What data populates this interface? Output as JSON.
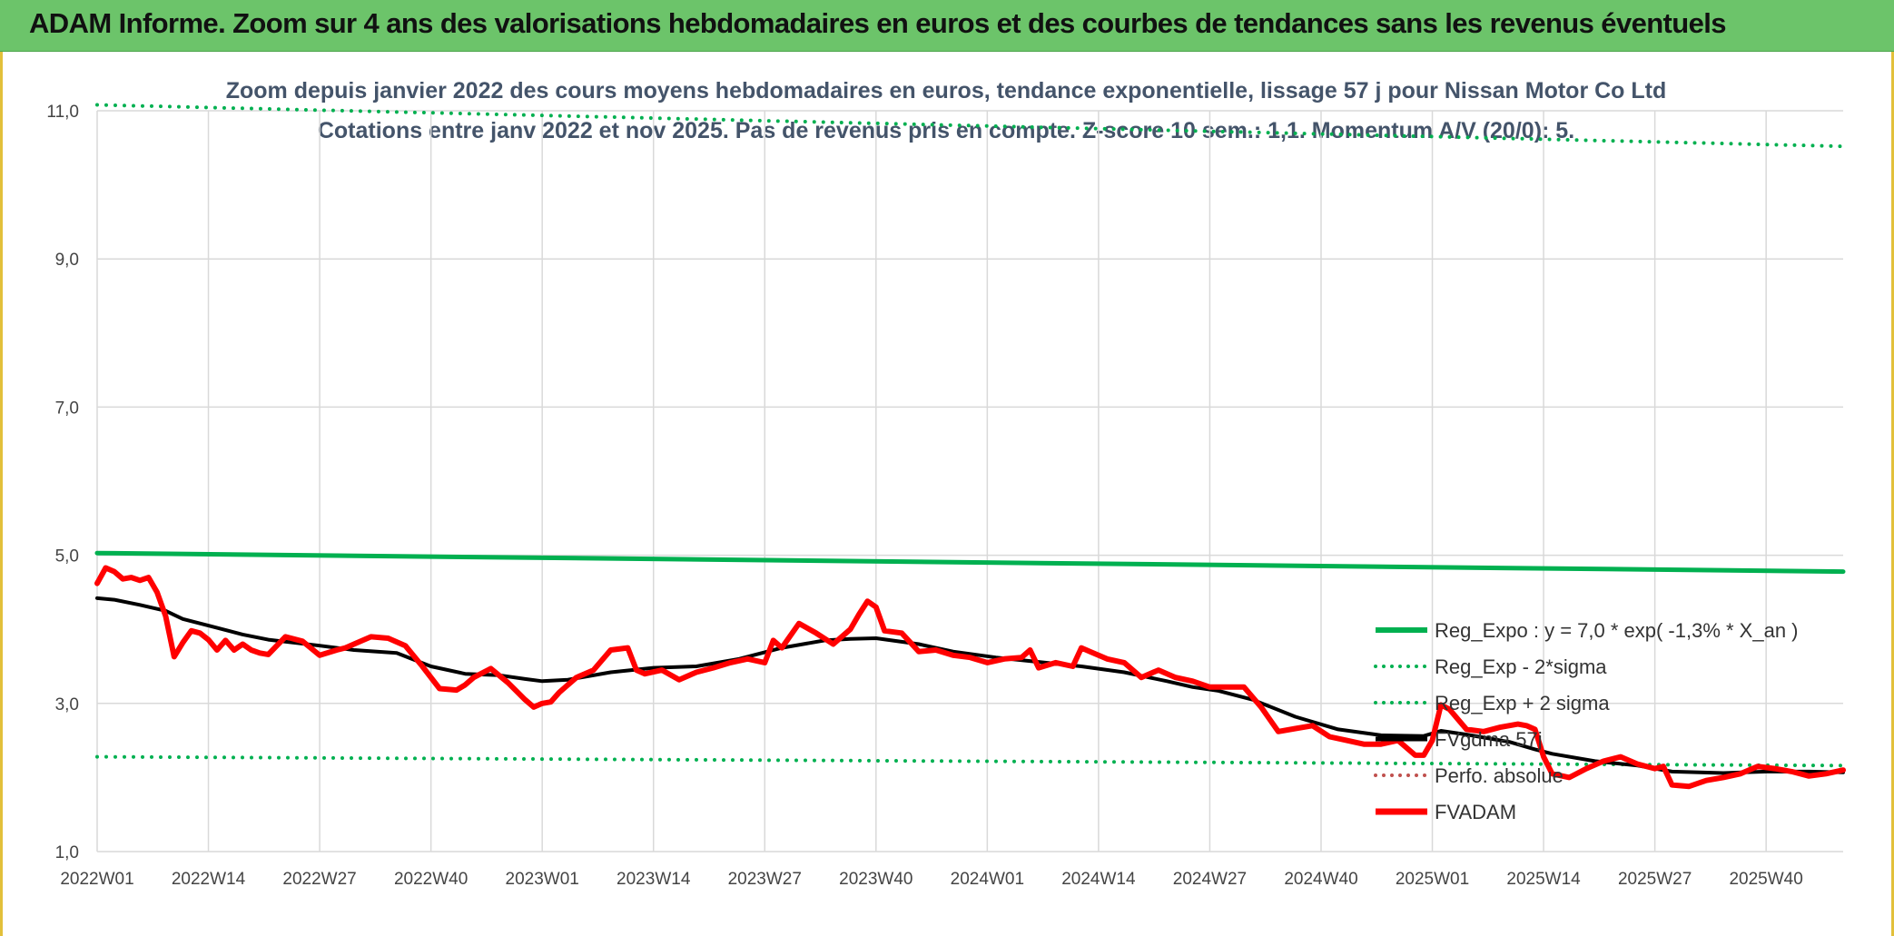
{
  "banner": {
    "title": "ADAM Informe. Zoom sur 4 ans des valorisations hebdomadaires en euros et des courbes de tendances sans les revenus éventuels"
  },
  "chart_data": {
    "type": "line",
    "title": "Zoom depuis janvier 2022 des cours moyens hebdomadaires en euros, tendance exponentielle, lissage 57 j pour Nissan Motor Co Ltd",
    "subtitle": "Cotations entre janv 2022 et nov 2025. Pas de revenus pris en compte. Z-score 10 sem.: 1,1. Momentum A/V (20/0): 5.",
    "xlabel": "",
    "ylabel": "",
    "ylim": [
      1.0,
      11.0
    ],
    "y_ticks": [
      1.0,
      3.0,
      5.0,
      7.0,
      9.0,
      11.0
    ],
    "y_tick_labels": [
      "1,0",
      "3,0",
      "5,0",
      "7,0",
      "9,0",
      "11,0"
    ],
    "x_tick_labels": [
      "2022W01",
      "2022W14",
      "2022W27",
      "2022W40",
      "2023W01",
      "2023W14",
      "2023W27",
      "2023W40",
      "2024W01",
      "2024W14",
      "2024W27",
      "2024W40",
      "2025W01",
      "2025W14",
      "2025W27",
      "2025W40"
    ],
    "x_tick_index": [
      0,
      13,
      26,
      39,
      52,
      65,
      78,
      91,
      104,
      117,
      130,
      143,
      156,
      169,
      182,
      195
    ],
    "weeks_count": 204,
    "grid": true,
    "legend_position": "right",
    "series": [
      {
        "name": "Reg_Expo : y = 7,0 * exp( -1,3% *  X_an )",
        "color": "#00b050",
        "style": "solid",
        "width": 5,
        "x": [
          0,
          204
        ],
        "values": [
          5.03,
          4.78
        ]
      },
      {
        "name": "Reg_Exp - 2*sigma",
        "color": "#00b050",
        "style": "dotted",
        "width": 4,
        "x": [
          0,
          204
        ],
        "values": [
          2.28,
          2.16
        ]
      },
      {
        "name": "Reg_Exp + 2 sigma",
        "color": "#00b050",
        "style": "dotted",
        "width": 4,
        "x": [
          0,
          204
        ],
        "values": [
          11.08,
          10.52
        ]
      },
      {
        "name": "FVgdma 57j",
        "color": "#000000",
        "style": "solid",
        "width": 4,
        "x": [
          0,
          2,
          5,
          8,
          10,
          13,
          17,
          20,
          26,
          30,
          35,
          39,
          43,
          47,
          50,
          52,
          55,
          60,
          65,
          70,
          75,
          80,
          85,
          88,
          91,
          96,
          100,
          105,
          110,
          115,
          120,
          125,
          128,
          131,
          135,
          140,
          145,
          150,
          155,
          157,
          160,
          165,
          168,
          170,
          175,
          180,
          184,
          190,
          195,
          200,
          204
        ],
        "values": [
          4.42,
          4.4,
          4.33,
          4.25,
          4.14,
          4.05,
          3.93,
          3.86,
          3.78,
          3.72,
          3.68,
          3.5,
          3.4,
          3.38,
          3.33,
          3.3,
          3.32,
          3.42,
          3.48,
          3.5,
          3.6,
          3.75,
          3.85,
          3.87,
          3.88,
          3.8,
          3.7,
          3.62,
          3.56,
          3.5,
          3.42,
          3.3,
          3.22,
          3.17,
          3.05,
          2.82,
          2.65,
          2.57,
          2.56,
          2.63,
          2.58,
          2.48,
          2.38,
          2.32,
          2.22,
          2.16,
          2.08,
          2.06,
          2.08,
          2.08,
          2.07
        ]
      },
      {
        "name": "Perfo. absolue",
        "color": "#c0504d",
        "style": "dotted",
        "width": 3,
        "x": [],
        "values": []
      },
      {
        "name": "FVADAM",
        "color": "#ff0000",
        "style": "solid",
        "width": 6,
        "x": [
          0,
          1,
          2,
          3,
          4,
          5,
          6,
          7,
          8,
          9,
          10,
          11,
          12,
          13,
          14,
          15,
          16,
          17,
          18,
          19,
          20,
          22,
          24,
          26,
          28,
          29,
          30,
          32,
          34,
          36,
          38,
          40,
          42,
          43,
          44,
          46,
          48,
          50,
          51,
          52,
          53,
          54,
          56,
          58,
          60,
          62,
          63,
          64,
          66,
          68,
          70,
          72,
          74,
          76,
          78,
          79,
          80,
          82,
          84,
          86,
          88,
          89,
          90,
          91,
          92,
          94,
          96,
          98,
          100,
          102,
          104,
          106,
          108,
          109,
          110,
          112,
          114,
          115,
          116,
          118,
          120,
          122,
          124,
          126,
          128,
          130,
          132,
          134,
          136,
          138,
          140,
          142,
          144,
          146,
          148,
          150,
          152,
          154,
          155,
          156,
          157,
          158,
          160,
          162,
          164,
          166,
          167,
          168,
          169,
          170,
          172,
          174,
          176,
          178,
          180,
          182,
          183,
          184,
          186,
          188,
          190,
          192,
          194,
          196,
          198,
          200,
          202,
          204
        ],
        "values": [
          4.62,
          4.83,
          4.78,
          4.68,
          4.7,
          4.66,
          4.7,
          4.5,
          4.18,
          3.63,
          3.82,
          3.98,
          3.95,
          3.86,
          3.72,
          3.85,
          3.72,
          3.8,
          3.72,
          3.68,
          3.66,
          3.9,
          3.84,
          3.65,
          3.72,
          3.75,
          3.8,
          3.9,
          3.88,
          3.78,
          3.5,
          3.2,
          3.18,
          3.25,
          3.35,
          3.47,
          3.28,
          3.05,
          2.95,
          3.0,
          3.02,
          3.15,
          3.35,
          3.45,
          3.72,
          3.75,
          3.45,
          3.4,
          3.45,
          3.32,
          3.42,
          3.48,
          3.55,
          3.6,
          3.55,
          3.85,
          3.75,
          4.08,
          3.95,
          3.8,
          4.0,
          4.2,
          4.38,
          4.3,
          3.98,
          3.95,
          3.7,
          3.72,
          3.65,
          3.62,
          3.55,
          3.6,
          3.62,
          3.72,
          3.48,
          3.55,
          3.5,
          3.75,
          3.7,
          3.6,
          3.55,
          3.35,
          3.45,
          3.35,
          3.3,
          3.22,
          3.22,
          3.22,
          2.95,
          2.62,
          2.66,
          2.7,
          2.55,
          2.5,
          2.45,
          2.45,
          2.5,
          2.3,
          2.3,
          2.5,
          2.98,
          2.92,
          2.65,
          2.62,
          2.68,
          2.72,
          2.7,
          2.65,
          2.28,
          2.05,
          2.0,
          2.12,
          2.22,
          2.28,
          2.18,
          2.12,
          2.15,
          1.9,
          1.88,
          1.96,
          2.0,
          2.05,
          2.15,
          2.12,
          2.08,
          2.02,
          2.05,
          2.1
        ]
      }
    ]
  }
}
